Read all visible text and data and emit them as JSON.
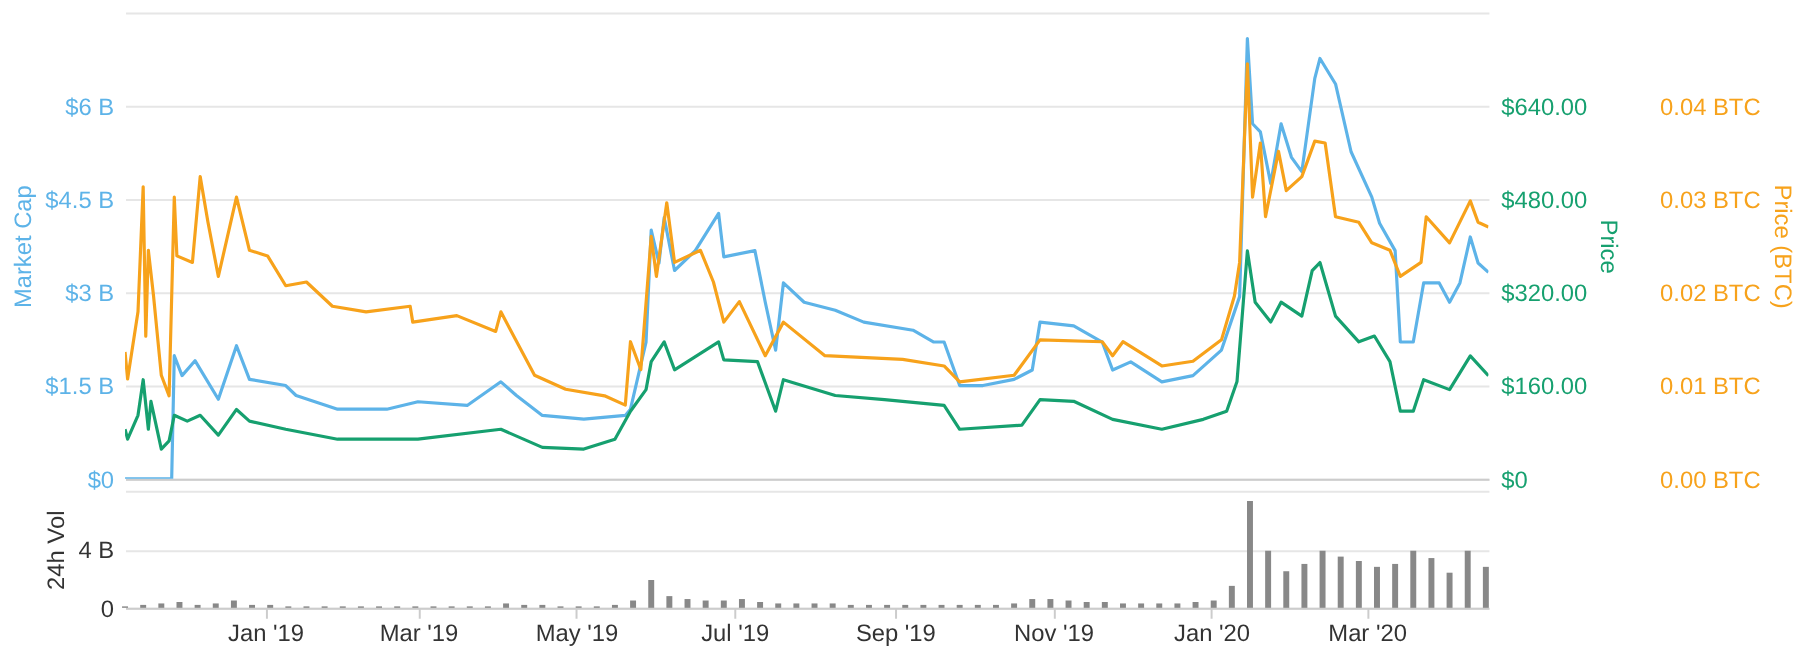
{
  "chart_data": [
    {
      "type": "line",
      "xlim": [
        "2018-11-08",
        "2020-04-17"
      ],
      "ylim": [
        0,
        7.5
      ],
      "yticks": [
        {
          "value": 0,
          "label": "$0"
        },
        {
          "value": 1.5,
          "label": "$1.5 B"
        },
        {
          "value": 3,
          "label": "$3 B"
        },
        {
          "value": 4.5,
          "label": "$4.5 B"
        },
        {
          "value": 6,
          "label": "$6 B"
        },
        {
          "value": 7.5,
          "label": null
        }
      ],
      "ylabel": "Market Cap",
      "y2lim": [
        0,
        800
      ],
      "y2ticks": [
        {
          "value": 0,
          "label": "$0"
        },
        {
          "value": 160,
          "label": "$160.00"
        },
        {
          "value": 320,
          "label": "$320.00"
        },
        {
          "value": 480,
          "label": "$480.00"
        },
        {
          "value": 640,
          "label": "$640.00"
        },
        {
          "value": 800,
          "label": null
        }
      ],
      "y2label": "Price",
      "y3lim": [
        0,
        0.05
      ],
      "y3ticks": [
        {
          "value": 0,
          "label": "0.00 BTC"
        },
        {
          "value": 0.01,
          "label": "0.01 BTC"
        },
        {
          "value": 0.02,
          "label": "0.02 BTC"
        },
        {
          "value": 0.03,
          "label": "0.03 BTC"
        },
        {
          "value": 0.04,
          "label": "0.04 BTC"
        },
        {
          "value": 0.05,
          "label": null
        }
      ],
      "y3label": "Price (BTC)",
      "grid": "y",
      "tick_labels": "y",
      "line_style": "solid",
      "series": [
        {
          "color": "#5db3e8",
          "axis": "y",
          "x": [
            "2018-11-08",
            "2018-11-26",
            "2018-11-27",
            "2018-11-30",
            "2018-12-05",
            "2018-12-14",
            "2018-12-21",
            "2018-12-26",
            "2019-01-09",
            "2019-01-13",
            "2019-01-29",
            "2019-02-17",
            "2019-03-01",
            "2019-03-20",
            "2019-04-02",
            "2019-04-08",
            "2019-04-18",
            "2019-05-04",
            "2019-05-20",
            "2019-05-22",
            "2019-05-28",
            "2019-05-30",
            "2019-06-02",
            "2019-06-04",
            "2019-06-08",
            "2019-06-16",
            "2019-06-25",
            "2019-06-27",
            "2019-07-09",
            "2019-07-13",
            "2019-07-17",
            "2019-07-20",
            "2019-07-28",
            "2019-08-09",
            "2019-08-20",
            "2019-09-08",
            "2019-09-16",
            "2019-09-20",
            "2019-09-26",
            "2019-10-05",
            "2019-10-17",
            "2019-10-24",
            "2019-10-27",
            "2019-11-09",
            "2019-11-20",
            "2019-11-24",
            "2019-12-01",
            "2019-12-13",
            "2019-12-25",
            "2020-01-05",
            "2020-01-12",
            "2020-01-15",
            "2020-01-17",
            "2020-01-20",
            "2020-01-24",
            "2020-01-28",
            "2020-02-01",
            "2020-02-05",
            "2020-02-10",
            "2020-02-12",
            "2020-02-18",
            "2020-02-24",
            "2020-03-03",
            "2020-03-06",
            "2020-03-12",
            "2020-03-14",
            "2020-03-19",
            "2020-03-23",
            "2020-03-29",
            "2020-04-02",
            "2020-04-06",
            "2020-04-10",
            "2020-04-13",
            "2020-04-17"
          ],
          "values": [
            0,
            0,
            1.98,
            1.66,
            1.9,
            1.28,
            2.14,
            1.6,
            1.5,
            1.34,
            1.12,
            1.12,
            1.24,
            1.18,
            1.56,
            1.34,
            1.02,
            0.96,
            1.02,
            1.12,
            2.2,
            4.0,
            3.47,
            4.2,
            3.35,
            3.67,
            4.27,
            3.57,
            3.67,
            2.84,
            2.07,
            3.15,
            2.84,
            2.71,
            2.52,
            2.39,
            2.2,
            2.2,
            1.5,
            1.5,
            1.6,
            1.75,
            2.52,
            2.46,
            2.2,
            1.75,
            1.88,
            1.56,
            1.66,
            2.07,
            2.93,
            7.08,
            5.71,
            5.58,
            4.75,
            5.71,
            5.17,
            4.94,
            6.44,
            6.76,
            6.35,
            5.26,
            4.53,
            4.11,
            3.67,
            2.2,
            2.2,
            3.15,
            3.15,
            2.84,
            3.15,
            3.89,
            3.47,
            3.32
          ]
        },
        {
          "color": "#16a06f",
          "axis": "y2",
          "x": [
            "2018-11-08",
            "2018-11-09",
            "2018-11-13",
            "2018-11-15",
            "2018-11-17",
            "2018-11-18",
            "2018-11-22",
            "2018-11-25",
            "2018-11-27",
            "2018-12-02",
            "2018-12-07",
            "2018-12-14",
            "2018-12-21",
            "2018-12-26",
            "2019-01-09",
            "2019-01-29",
            "2019-03-01",
            "2019-04-02",
            "2019-04-18",
            "2019-05-04",
            "2019-05-16",
            "2019-05-22",
            "2019-05-28",
            "2019-05-30",
            "2019-06-04",
            "2019-06-08",
            "2019-06-25",
            "2019-06-27",
            "2019-07-10",
            "2019-07-17",
            "2019-07-20",
            "2019-08-09",
            "2019-08-28",
            "2019-09-20",
            "2019-09-26",
            "2019-10-20",
            "2019-10-27",
            "2019-11-09",
            "2019-11-24",
            "2019-12-13",
            "2019-12-29",
            "2020-01-07",
            "2020-01-11",
            "2020-01-15",
            "2020-01-18",
            "2020-01-24",
            "2020-01-28",
            "2020-02-05",
            "2020-02-09",
            "2020-02-12",
            "2020-02-18",
            "2020-02-27",
            "2020-03-04",
            "2020-03-10",
            "2020-03-14",
            "2020-03-19",
            "2020-03-23",
            "2020-04-02",
            "2020-04-10",
            "2020-04-17"
          ],
          "values": [
            85,
            68,
            109,
            170,
            85,
            133,
            51,
            65,
            109,
            99,
            109,
            75,
            119,
            99,
            85,
            68,
            68,
            85,
            54,
            51,
            68,
            116,
            153,
            201,
            235,
            187,
            235,
            204,
            201,
            116,
            170,
            143,
            136,
            126,
            85,
            92,
            136,
            133,
            102,
            85,
            102,
            116,
            167,
            391,
            303,
            269,
            303,
            279,
            357,
            371,
            279,
            235,
            245,
            201,
            116,
            116,
            170,
            153,
            211,
            177
          ]
        },
        {
          "color": "#f7a21b",
          "axis": "y3",
          "x": [
            "2018-11-08",
            "2018-11-09",
            "2018-11-13",
            "2018-11-15",
            "2018-11-16",
            "2018-11-17",
            "2018-11-19",
            "2018-11-22",
            "2018-11-25",
            "2018-11-27",
            "2018-11-28",
            "2018-12-04",
            "2018-12-07",
            "2018-12-10",
            "2018-12-14",
            "2018-12-21",
            "2018-12-26",
            "2019-01-02",
            "2019-01-09",
            "2019-01-17",
            "2019-01-27",
            "2019-02-09",
            "2019-02-26",
            "2019-02-27",
            "2019-03-16",
            "2019-03-31",
            "2019-04-02",
            "2019-04-15",
            "2019-04-27",
            "2019-05-12",
            "2019-05-20",
            "2019-05-22",
            "2019-05-26",
            "2019-05-30",
            "2019-06-01",
            "2019-06-05",
            "2019-06-08",
            "2019-06-18",
            "2019-06-23",
            "2019-06-27",
            "2019-07-03",
            "2019-07-13",
            "2019-07-20",
            "2019-08-05",
            "2019-09-04",
            "2019-09-20",
            "2019-09-26",
            "2019-10-17",
            "2019-10-27",
            "2019-11-20",
            "2019-11-24",
            "2019-11-28",
            "2019-12-13",
            "2019-12-25",
            "2020-01-05",
            "2020-01-10",
            "2020-01-12",
            "2020-01-15",
            "2020-01-17",
            "2020-01-20",
            "2020-01-22",
            "2020-01-27",
            "2020-01-30",
            "2020-02-05",
            "2020-02-10",
            "2020-02-14",
            "2020-02-18",
            "2020-02-27",
            "2020-03-03",
            "2020-03-10",
            "2020-03-14",
            "2020-03-22",
            "2020-03-24",
            "2020-04-02",
            "2020-04-10",
            "2020-04-13",
            "2020-04-17"
          ],
          "values": [
            0.0136,
            0.0107,
            0.0179,
            0.0313,
            0.0153,
            0.0245,
            0.0196,
            0.0111,
            0.0089,
            0.0302,
            0.0239,
            0.0232,
            0.0324,
            0.0275,
            0.0217,
            0.0302,
            0.0245,
            0.0239,
            0.0207,
            0.0211,
            0.0185,
            0.0179,
            0.0185,
            0.0168,
            0.0175,
            0.0158,
            0.0179,
            0.0111,
            0.0096,
            0.0089,
            0.0079,
            0.0147,
            0.0117,
            0.026,
            0.0217,
            0.0296,
            0.0232,
            0.0245,
            0.0211,
            0.0168,
            0.019,
            0.0132,
            0.0168,
            0.0132,
            0.0128,
            0.0121,
            0.0104,
            0.0111,
            0.0149,
            0.0147,
            0.0132,
            0.0147,
            0.0121,
            0.0126,
            0.0149,
            0.0196,
            0.0232,
            0.0445,
            0.0302,
            0.036,
            0.0281,
            0.0351,
            0.0309,
            0.0324,
            0.0362,
            0.036,
            0.0281,
            0.0275,
            0.0253,
            0.0245,
            0.0217,
            0.0232,
            0.0281,
            0.0253,
            0.0298,
            0.0275,
            0.027
          ]
        }
      ]
    },
    {
      "type": "bar",
      "color": "#888888",
      "xlim": [
        "2018-11-08",
        "2020-04-17"
      ],
      "xticks": [
        {
          "value": "2019-01-01",
          "label": "Jan '19"
        },
        {
          "value": "2019-03-01",
          "label": "Mar '19"
        },
        {
          "value": "2019-05-01",
          "label": "May '19"
        },
        {
          "value": "2019-07-01",
          "label": "Jul '19"
        },
        {
          "value": "2019-09-01",
          "label": "Sep '19"
        },
        {
          "value": "2019-11-01",
          "label": "Nov '19"
        },
        {
          "value": "2020-01-01",
          "label": "Jan '20"
        },
        {
          "value": "2020-03-01",
          "label": "Mar '20"
        }
      ],
      "ylim": [
        0,
        8
      ],
      "yticks": [
        0,
        {
          "value": 4,
          "label": "4 B"
        },
        {
          "value": 8,
          "label": null
        }
      ],
      "ylabel": "24h Vol",
      "grid": "y",
      "x": [
        "2018-11-08",
        "2018-11-15",
        "2018-11-22",
        "2018-11-29",
        "2018-12-06",
        "2018-12-13",
        "2018-12-20",
        "2018-12-27",
        "2019-01-03",
        "2019-01-10",
        "2019-01-17",
        "2019-01-24",
        "2019-01-31",
        "2019-02-07",
        "2019-02-14",
        "2019-02-21",
        "2019-02-28",
        "2019-03-07",
        "2019-03-14",
        "2019-03-21",
        "2019-03-28",
        "2019-04-04",
        "2019-04-11",
        "2019-04-18",
        "2019-04-25",
        "2019-05-02",
        "2019-05-09",
        "2019-05-16",
        "2019-05-23",
        "2019-05-30",
        "2019-06-06",
        "2019-06-13",
        "2019-06-20",
        "2019-06-27",
        "2019-07-04",
        "2019-07-11",
        "2019-07-18",
        "2019-07-25",
        "2019-08-01",
        "2019-08-08",
        "2019-08-15",
        "2019-08-22",
        "2019-08-29",
        "2019-09-05",
        "2019-09-12",
        "2019-09-19",
        "2019-09-26",
        "2019-10-03",
        "2019-10-10",
        "2019-10-17",
        "2019-10-24",
        "2019-10-31",
        "2019-11-07",
        "2019-11-14",
        "2019-11-21",
        "2019-11-28",
        "2019-12-05",
        "2019-12-12",
        "2019-12-19",
        "2019-12-26",
        "2020-01-02",
        "2020-01-09",
        "2020-01-16",
        "2020-01-23",
        "2020-01-30",
        "2020-02-06",
        "2020-02-13",
        "2020-02-20",
        "2020-02-27",
        "2020-03-05",
        "2020-03-12",
        "2020-03-19",
        "2020-03-26",
        "2020-04-02",
        "2020-04-09",
        "2020-04-16"
      ],
      "values": [
        0.1,
        0.2,
        0.3,
        0.4,
        0.2,
        0.3,
        0.5,
        0.2,
        0.2,
        0.1,
        0.1,
        0.1,
        0.1,
        0.1,
        0.1,
        0.1,
        0.1,
        0.1,
        0.1,
        0.1,
        0.1,
        0.3,
        0.2,
        0.2,
        0.1,
        0.1,
        0.1,
        0.2,
        0.5,
        1.9,
        0.8,
        0.6,
        0.5,
        0.5,
        0.6,
        0.4,
        0.3,
        0.3,
        0.3,
        0.3,
        0.2,
        0.2,
        0.2,
        0.2,
        0.2,
        0.2,
        0.2,
        0.2,
        0.2,
        0.3,
        0.6,
        0.6,
        0.5,
        0.4,
        0.4,
        0.3,
        0.3,
        0.3,
        0.3,
        0.4,
        0.5,
        1.5,
        7.3,
        3.9,
        2.5,
        3.0,
        3.9,
        3.5,
        3.2,
        2.8,
        3.0,
        3.9,
        3.4,
        2.4,
        3.9,
        2.8
      ]
    }
  ]
}
